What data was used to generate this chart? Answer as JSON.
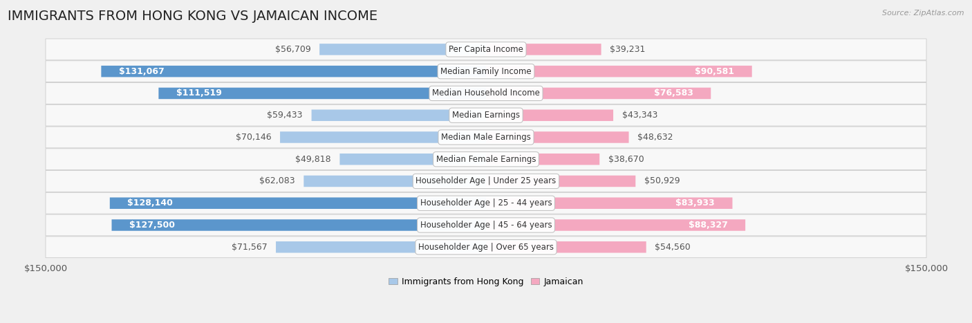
{
  "title": "IMMIGRANTS FROM HONG KONG VS JAMAICAN INCOME",
  "source": "Source: ZipAtlas.com",
  "categories": [
    "Per Capita Income",
    "Median Family Income",
    "Median Household Income",
    "Median Earnings",
    "Median Male Earnings",
    "Median Female Earnings",
    "Householder Age | Under 25 years",
    "Householder Age | 25 - 44 years",
    "Householder Age | 45 - 64 years",
    "Householder Age | Over 65 years"
  ],
  "hk_values": [
    56709,
    131067,
    111519,
    59433,
    70146,
    49818,
    62083,
    128140,
    127500,
    71567
  ],
  "jam_values": [
    39231,
    90581,
    76583,
    43343,
    48632,
    38670,
    50929,
    83933,
    88327,
    54560
  ],
  "hk_labels": [
    "$56,709",
    "$131,067",
    "$111,519",
    "$59,433",
    "$70,146",
    "$49,818",
    "$62,083",
    "$128,140",
    "$127,500",
    "$71,567"
  ],
  "jam_labels": [
    "$39,231",
    "$90,581",
    "$76,583",
    "$43,343",
    "$48,632",
    "$38,670",
    "$50,929",
    "$83,933",
    "$88,327",
    "$54,560"
  ],
  "hk_color_light": "#a8c8e8",
  "hk_color_dark": "#5b96cc",
  "jam_color_light": "#f4a8c0",
  "jam_color_dark": "#e8608a",
  "hk_label_inside": [
    false,
    true,
    true,
    false,
    false,
    false,
    false,
    true,
    true,
    false
  ],
  "jam_label_inside": [
    false,
    true,
    true,
    false,
    false,
    false,
    false,
    true,
    true,
    false
  ],
  "max_val": 150000,
  "xlabel_left": "$150,000",
  "xlabel_right": "$150,000",
  "legend_hk": "Immigrants from Hong Kong",
  "legend_jam": "Jamaican",
  "bg_color": "#f0f0f0",
  "row_bg": "#f8f8f8",
  "title_fontsize": 14,
  "label_fontsize": 9,
  "axis_label_fontsize": 9.5,
  "cat_fontsize": 8.5
}
